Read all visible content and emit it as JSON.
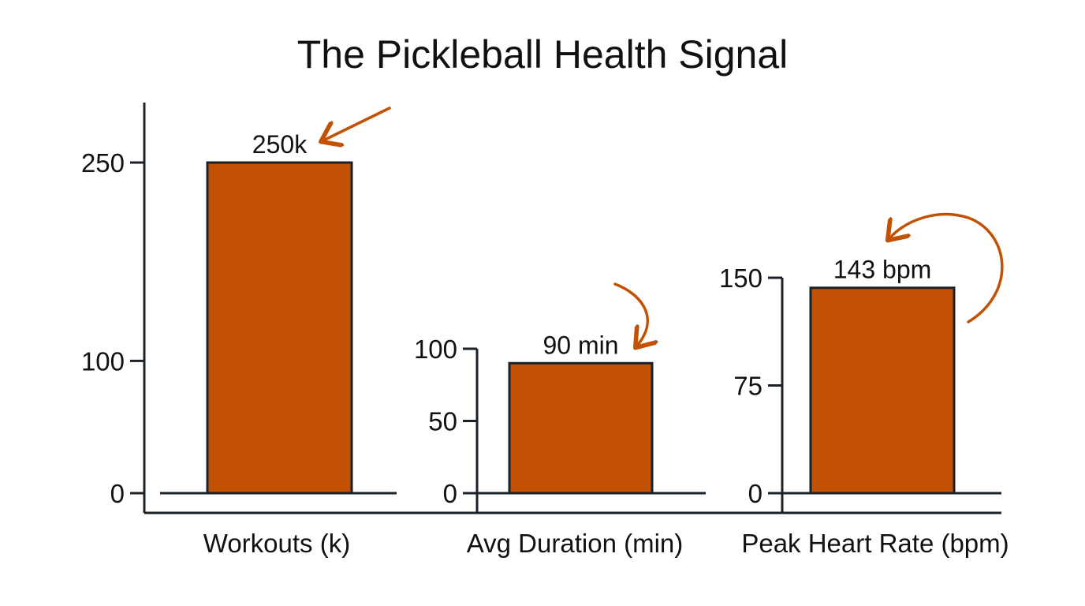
{
  "title": "The Pickleball Health Signal",
  "colors": {
    "bar": "#c25103",
    "bar_stroke": "#1b2129",
    "axis": "#1b2129",
    "arrow": "#c25103",
    "text": "#111111"
  },
  "chart_data": [
    {
      "type": "bar",
      "categories": [
        "Workouts (k)"
      ],
      "values": [
        250
      ],
      "data_labels": [
        "250k"
      ],
      "yticks": [
        0,
        100,
        250
      ],
      "ytick_labels": [
        "0",
        "100",
        "250"
      ],
      "ylim": [
        0,
        250
      ],
      "annotation": "straight-arrow"
    },
    {
      "type": "bar",
      "categories": [
        "Avg Duration (min)"
      ],
      "values": [
        90
      ],
      "data_labels": [
        "90 min"
      ],
      "yticks": [
        0,
        50,
        100
      ],
      "ytick_labels": [
        "0",
        "50",
        "100"
      ],
      "ylim": [
        0,
        100
      ],
      "annotation": "curved-arrow"
    },
    {
      "type": "bar",
      "categories": [
        "Peak Heart Rate (bpm)"
      ],
      "values": [
        143
      ],
      "data_labels": [
        "143 bpm"
      ],
      "yticks": [
        0,
        75,
        150
      ],
      "ytick_labels": [
        "0",
        "75",
        "150"
      ],
      "ylim": [
        0,
        150
      ],
      "annotation": "looping-arrow"
    }
  ]
}
